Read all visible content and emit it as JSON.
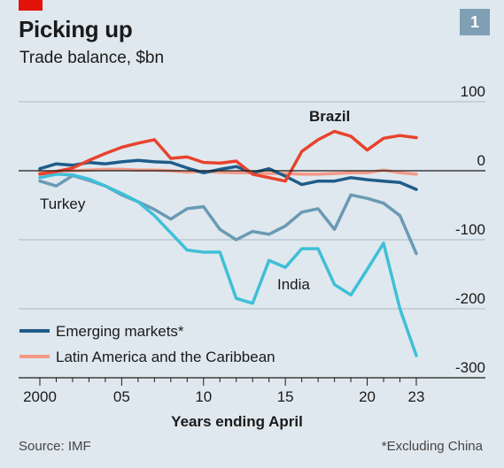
{
  "header": {
    "title": "Picking up",
    "subtitle": "Trade balance, $bn",
    "chart_number": "1"
  },
  "footer": {
    "source": "Source: IMF",
    "note": "*Excluding China"
  },
  "colors": {
    "background": "#dfe8ee",
    "brand_red": "#e3120b",
    "emerging_markets": "#1e5c8a",
    "latin_america": "#f29a86",
    "brazil": "#e8432d",
    "turkey": "#6a9ab4",
    "india": "#3fbfd8"
  },
  "chart_data": {
    "type": "line",
    "title": "Picking up",
    "subtitle": "Trade balance, $bn",
    "xlabel": "Years ending April",
    "ylabel": "",
    "x": [
      2000,
      2001,
      2002,
      2003,
      2004,
      2005,
      2006,
      2007,
      2008,
      2009,
      2010,
      2011,
      2012,
      2013,
      2014,
      2015,
      2016,
      2017,
      2018,
      2019,
      2020,
      2021,
      2022,
      2023
    ],
    "x_ticks": [
      2000,
      2005,
      2010,
      2015,
      2020,
      2023
    ],
    "x_tick_labels": [
      "2000",
      "05",
      "10",
      "15",
      "20",
      "23"
    ],
    "ylim": [
      -300,
      100
    ],
    "y_ticks": [
      100,
      0,
      -100,
      -200,
      -300
    ],
    "y_tick_labels": [
      "100",
      "0",
      "-100",
      "-200",
      "-300"
    ],
    "grid": true,
    "series": [
      {
        "name": "Emerging markets*",
        "color": "#1e5c8a",
        "in_legend": true,
        "values": [
          3,
          10,
          8,
          12,
          10,
          13,
          15,
          13,
          12,
          4,
          -3,
          2,
          6,
          -3,
          3,
          -8,
          -20,
          -15,
          -15,
          -10,
          -13,
          -15,
          -17,
          -27
        ]
      },
      {
        "name": "Latin America and the Caribbean",
        "color": "#f29a86",
        "in_legend": true,
        "values": [
          -3,
          -1,
          0,
          1,
          2,
          2,
          1,
          1,
          0,
          -2,
          -1,
          -2,
          -3,
          -3,
          -4,
          -4,
          -5,
          -5,
          -4,
          -3,
          -3,
          1,
          -3,
          -5
        ]
      },
      {
        "name": "Brazil",
        "color": "#e8432d",
        "in_legend": false,
        "values": [
          -5,
          -1,
          4,
          15,
          25,
          34,
          40,
          45,
          18,
          20,
          12,
          11,
          14,
          -5,
          -10,
          -15,
          28,
          45,
          57,
          50,
          30,
          47,
          51,
          48
        ]
      },
      {
        "name": "Turkey",
        "color": "#6a9ab4",
        "in_legend": false,
        "values": [
          -15,
          -22,
          -7,
          -14,
          -22,
          -35,
          -45,
          -56,
          -70,
          -55,
          -52,
          -85,
          -100,
          -88,
          -92,
          -80,
          -60,
          -55,
          -85,
          -35,
          -40,
          -47,
          -65,
          -120
        ]
      },
      {
        "name": "India",
        "color": "#3fbfd8",
        "in_legend": false,
        "values": [
          -10,
          -5,
          -6,
          -12,
          -22,
          -33,
          -45,
          -65,
          -90,
          -115,
          -118,
          -118,
          -185,
          -192,
          -130,
          -140,
          -113,
          -113,
          -165,
          -180,
          -143,
          -105,
          -200,
          -268
        ]
      }
    ],
    "annotations": [
      {
        "text": "Brazil",
        "bold": true
      },
      {
        "text": "Turkey",
        "bold": false
      },
      {
        "text": "India",
        "bold": false
      }
    ]
  }
}
